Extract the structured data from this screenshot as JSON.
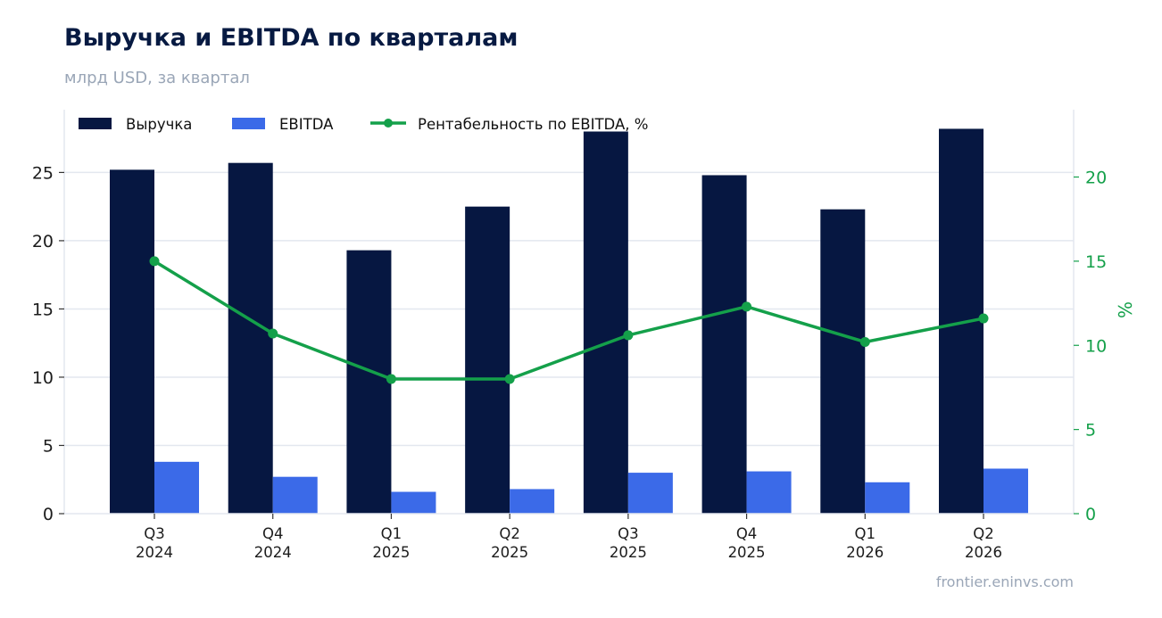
{
  "header": {
    "title": "Выручка и EBITDA по кварталам",
    "subtitle": "млрд USD, за квартал"
  },
  "footer": {
    "source": "frontier.eninvs.com"
  },
  "colors": {
    "revenue": "#061741",
    "ebitda": "#3b6ae8",
    "margin": "#14a04a",
    "grid": "#e3e7ef",
    "axis_text": "#1c1c1c",
    "legend_text": "#111111"
  },
  "chart_data": {
    "type": "bar",
    "categories": [
      [
        "Q3",
        "2024"
      ],
      [
        "Q4",
        "2024"
      ],
      [
        "Q1",
        "2025"
      ],
      [
        "Q2",
        "2025"
      ],
      [
        "Q3",
        "2025"
      ],
      [
        "Q4",
        "2025"
      ],
      [
        "Q1",
        "2026"
      ],
      [
        "Q2",
        "2026"
      ]
    ],
    "series": [
      {
        "name": "Выручка",
        "kind": "bar",
        "axis": "left",
        "values": [
          25.2,
          25.7,
          19.3,
          22.5,
          28.0,
          24.8,
          22.3,
          28.2
        ]
      },
      {
        "name": "EBITDA",
        "kind": "bar",
        "axis": "left",
        "values": [
          3.8,
          2.7,
          1.6,
          1.8,
          3.0,
          3.1,
          2.3,
          3.3
        ]
      },
      {
        "name": "Рентабельность по EBITDA, %",
        "kind": "line",
        "axis": "right",
        "values": [
          15.0,
          10.7,
          8.0,
          8.0,
          10.6,
          12.3,
          10.2,
          11.6
        ]
      }
    ],
    "y_left": {
      "label": "",
      "ticks": [
        0,
        5,
        10,
        15,
        20,
        25
      ],
      "range": [
        0,
        29.6
      ]
    },
    "y_right": {
      "label": "%",
      "ticks": [
        0,
        5,
        10,
        15,
        20
      ],
      "range": [
        0,
        24
      ]
    },
    "grid": true,
    "legend": "top-left"
  }
}
